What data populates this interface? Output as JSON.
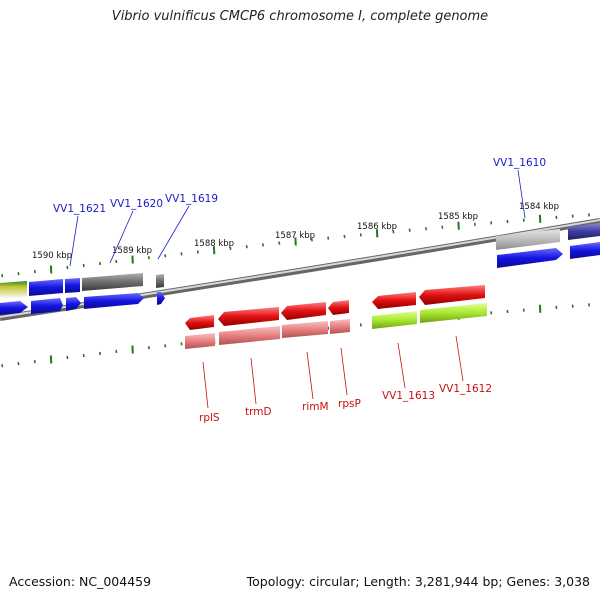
{
  "title": "Vibrio vulnificus CMCP6 chromosome I, complete genome",
  "footer": {
    "accession": "Accession: NC_004459",
    "summary": "Topology: circular; Length: 3,281,944 bp; Genes: 3,038"
  },
  "colors": {
    "backbone": "#8a8a8a",
    "tick": "#1e7a1e",
    "blue_gene": "#1414e0",
    "gray_gene": "#6e6e6e",
    "navy_gene": "#3c3ca0",
    "red_gene": "#e01010",
    "pink_gene": "#e88080",
    "lime_gene": "#a8e830",
    "blue_label": "#1a1acc",
    "red_label": "#c81010"
  },
  "scale_labels": [
    "1590 kbp",
    "1589 kbp",
    "1588 kbp",
    "1587 kbp",
    "1586 kbp",
    "1585 kbp",
    "1584 kbp"
  ],
  "blue_gene_labels": [
    "VV1_1621",
    "VV1_1620",
    "VV1_1619",
    "VV1_1610"
  ],
  "red_gene_labels": [
    "rplS",
    "trmD",
    "rimM",
    "rpsP",
    "VV1_1613",
    "VV1_1612"
  ]
}
